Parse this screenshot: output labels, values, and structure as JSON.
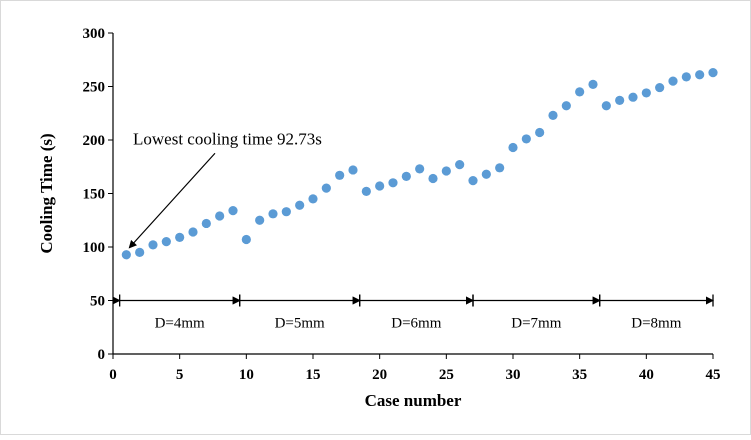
{
  "chart_data": {
    "type": "scatter",
    "title": "",
    "xlabel": "Case number",
    "ylabel": "Cooling Time (s)",
    "xlim": [
      0,
      45
    ],
    "ylim": [
      0,
      300
    ],
    "xticks": [
      0,
      5,
      10,
      15,
      20,
      25,
      30,
      35,
      40,
      45
    ],
    "yticks": [
      0,
      50,
      100,
      150,
      200,
      250,
      300
    ],
    "grid": false,
    "legend": "none",
    "series": [
      {
        "color": "#5b9bd5",
        "points": [
          {
            "x": 1,
            "y": 92.73
          },
          {
            "x": 2,
            "y": 95
          },
          {
            "x": 3,
            "y": 102
          },
          {
            "x": 4,
            "y": 105
          },
          {
            "x": 5,
            "y": 109
          },
          {
            "x": 6,
            "y": 114
          },
          {
            "x": 7,
            "y": 122
          },
          {
            "x": 8,
            "y": 129
          },
          {
            "x": 9,
            "y": 134
          },
          {
            "x": 10,
            "y": 107
          },
          {
            "x": 11,
            "y": 125
          },
          {
            "x": 12,
            "y": 131
          },
          {
            "x": 13,
            "y": 133
          },
          {
            "x": 14,
            "y": 139
          },
          {
            "x": 15,
            "y": 145
          },
          {
            "x": 16,
            "y": 155
          },
          {
            "x": 17,
            "y": 167
          },
          {
            "x": 18,
            "y": 172
          },
          {
            "x": 19,
            "y": 152
          },
          {
            "x": 20,
            "y": 157
          },
          {
            "x": 21,
            "y": 160
          },
          {
            "x": 22,
            "y": 166
          },
          {
            "x": 23,
            "y": 173
          },
          {
            "x": 24,
            "y": 164
          },
          {
            "x": 25,
            "y": 171
          },
          {
            "x": 26,
            "y": 177
          },
          {
            "x": 27,
            "y": 162
          },
          {
            "x": 28,
            "y": 168
          },
          {
            "x": 29,
            "y": 174
          },
          {
            "x": 30,
            "y": 193
          },
          {
            "x": 31,
            "y": 201
          },
          {
            "x": 32,
            "y": 207
          },
          {
            "x": 33,
            "y": 223
          },
          {
            "x": 34,
            "y": 232
          },
          {
            "x": 35,
            "y": 245
          },
          {
            "x": 36,
            "y": 252
          },
          {
            "x": 37,
            "y": 232
          },
          {
            "x": 38,
            "y": 237
          },
          {
            "x": 39,
            "y": 240
          },
          {
            "x": 40,
            "y": 244
          },
          {
            "x": 41,
            "y": 249
          },
          {
            "x": 42,
            "y": 255
          },
          {
            "x": 43,
            "y": 259
          },
          {
            "x": 44,
            "y": 261
          },
          {
            "x": 45,
            "y": 263
          }
        ]
      }
    ],
    "groups": [
      {
        "label": "D=4mm",
        "x_range": [
          0.5,
          9.5
        ]
      },
      {
        "label": "D=5mm",
        "x_range": [
          9.5,
          18.5
        ]
      },
      {
        "label": "D=6mm",
        "x_range": [
          18.5,
          27
        ]
      },
      {
        "label": "D=7mm",
        "x_range": [
          27,
          36.5
        ]
      },
      {
        "label": "D=8mm",
        "x_range": [
          36.5,
          45
        ]
      }
    ],
    "group_arrow_y": 50,
    "annotations": [
      {
        "text": "Lowest cooling time 92.73s",
        "target": {
          "x": 1,
          "y": 92.73
        },
        "text_anchor": {
          "x": 1.5,
          "y": 196
        }
      }
    ]
  }
}
